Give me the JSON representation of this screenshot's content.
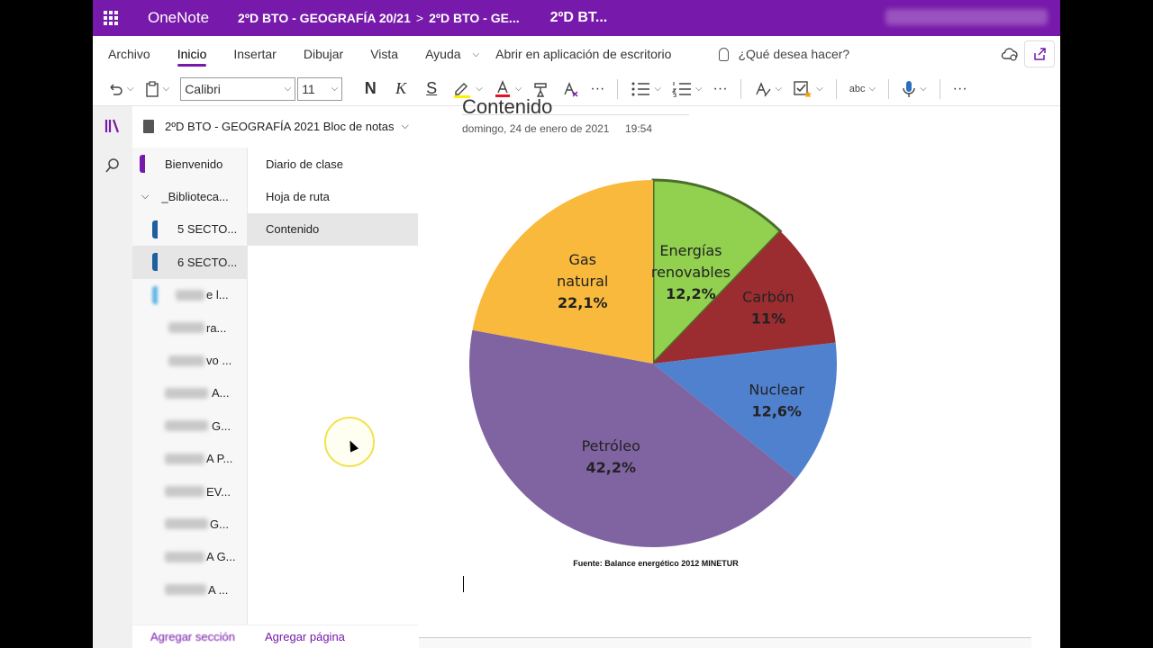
{
  "topbar": {
    "app_name": "OneNote",
    "breadcrumb_1": "2ºD BTO - GEOGRAFÍA 20/21",
    "breadcrumb_sep": ">",
    "breadcrumb_2": "2ºD BTO - GE...",
    "page_title": "2ºD BT..."
  },
  "menu": {
    "archivo": "Archivo",
    "inicio": "Inicio",
    "insertar": "Insertar",
    "dibujar": "Dibujar",
    "vista": "Vista",
    "ayuda": "Ayuda",
    "open_desktop": "Abrir en aplicación de escritorio",
    "ask_placeholder": "¿Qué desea hacer?"
  },
  "toolbar": {
    "font_name": "Calibri",
    "font_size": "11",
    "bold": "N",
    "italic": "K",
    "underline": "S",
    "more": "···",
    "spell": "abc"
  },
  "notebook": {
    "name": "2ºD BTO - GEOGRAFÍA 2021 Bloc de notas"
  },
  "sections": [
    {
      "label": "Bienvenido",
      "color": "#7719aa"
    },
    {
      "label": "_Biblioteca...",
      "group": true
    },
    {
      "label": "5 SECTO...",
      "color": "#1f5fa0"
    },
    {
      "label": "6 SECTO...",
      "color": "#1f5fa0"
    },
    {
      "label": "e l...",
      "color": "#5fb6e6"
    },
    {
      "label": "ra..."
    },
    {
      "label": "vo ..."
    },
    {
      "label": "A..."
    },
    {
      "label": "G..."
    },
    {
      "label": "A P..."
    },
    {
      "label": "EV..."
    },
    {
      "label": "G..."
    },
    {
      "label": "A G..."
    },
    {
      "label": "A ..."
    }
  ],
  "pages": [
    "Diario de clase",
    "Hoja de ruta",
    "Contenido"
  ],
  "bottom": {
    "add_section": "Agregar sección",
    "add_page": "Agregar página"
  },
  "page": {
    "title_fragment": "Contenido",
    "date": "domingo, 24 de enero de 2021",
    "time": "19:54"
  },
  "chart_data": {
    "type": "pie",
    "title": "",
    "source": "Fuente: Balance energético 2012 MINETUR",
    "slices": [
      {
        "name": "Energías renovables",
        "label": "12,2%",
        "value": 12.2,
        "color": "#92d050"
      },
      {
        "name": "Carbón",
        "label": "11%",
        "value": 11.0,
        "color": "#9b2d30"
      },
      {
        "name": "Nuclear",
        "label": "12,6%",
        "value": 12.6,
        "color": "#4f81cf"
      },
      {
        "name": "Petróleo",
        "label": "42,2%",
        "value": 42.2,
        "color": "#8064a2"
      },
      {
        "name": "Gas natural",
        "label": "22,1%",
        "value": 22.1,
        "color": "#f9b93c"
      }
    ]
  }
}
